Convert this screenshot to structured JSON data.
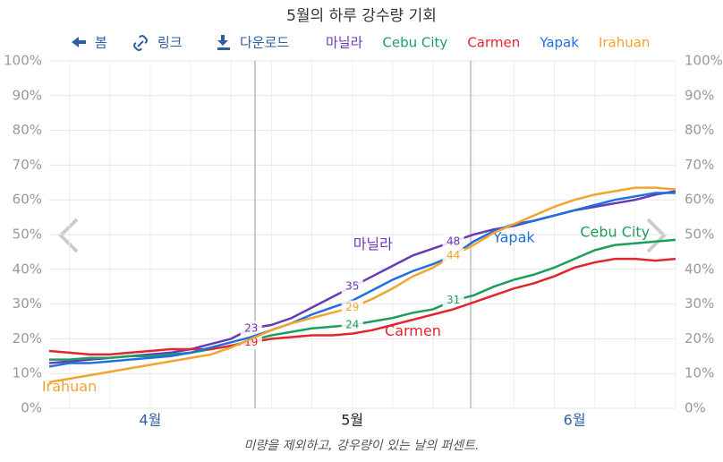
{
  "chart_data": {
    "type": "line",
    "title": "5월의 하루 강수량 기회",
    "toolbar": [
      "봄",
      "링크",
      "다운로드"
    ],
    "note": "미량을 제외하고, 강우량이 있는 날의 퍼센트.",
    "categories": [
      null,
      null,
      null,
      null,
      null,
      "4월",
      null,
      null,
      null,
      null,
      null,
      null,
      null,
      null,
      null,
      "5월",
      null,
      null,
      null,
      null,
      null,
      null,
      null,
      null,
      null,
      null,
      "6월",
      null,
      null,
      null,
      null,
      null
    ],
    "ylim": [
      0,
      100
    ],
    "yticks": [
      {
        "value": 0,
        "label": "0%"
      },
      {
        "value": 10,
        "label": "10%"
      },
      {
        "value": 20,
        "label": "20%"
      },
      {
        "value": 30,
        "label": "30%"
      },
      {
        "value": 40,
        "label": "40%"
      },
      {
        "value": 50,
        "label": "50%"
      },
      {
        "value": 60,
        "label": "60%"
      },
      {
        "value": 70,
        "label": "70%"
      },
      {
        "value": 80,
        "label": "80%"
      },
      {
        "value": 90,
        "label": "90%"
      },
      {
        "value": 100,
        "label": "100%"
      }
    ],
    "grid": true,
    "series": [
      {
        "name": "마닐라",
        "color": "#673ab7",
        "values": [
          13,
          13.5,
          14,
          14.5,
          15,
          15.5,
          16,
          17,
          18.5,
          20,
          23,
          24,
          26,
          29,
          32,
          35,
          38,
          41,
          44,
          46,
          48,
          50,
          51.5,
          52.5,
          54,
          55.5,
          57,
          58,
          59,
          60,
          61.5,
          62.5
        ],
        "value_labels": [
          null,
          null,
          null,
          null,
          null,
          null,
          null,
          null,
          null,
          null,
          "23",
          null,
          null,
          null,
          null,
          "35",
          null,
          null,
          null,
          null,
          "48",
          null,
          null,
          null,
          null,
          null,
          null,
          null,
          null,
          null,
          null,
          null
        ]
      },
      {
        "name": "Cebu City",
        "color": "#1e9e5e",
        "values": [
          14,
          14,
          14.5,
          14.5,
          15,
          15,
          15.5,
          16,
          17,
          18,
          19.5,
          21,
          22,
          23,
          23.5,
          24,
          25,
          26,
          27.5,
          28.5,
          31,
          32.5,
          35,
          37,
          38.5,
          40.5,
          43,
          45.5,
          47,
          47.5,
          48,
          48.5
        ],
        "value_labels": [
          null,
          null,
          null,
          null,
          null,
          null,
          null,
          null,
          null,
          null,
          null,
          null,
          null,
          null,
          null,
          "24",
          null,
          null,
          null,
          null,
          "31",
          null,
          null,
          null,
          null,
          null,
          null,
          null,
          null,
          null,
          null,
          null
        ]
      },
      {
        "name": "Carmen",
        "color": "#e0262f",
        "values": [
          16.5,
          16,
          15.5,
          15.5,
          16,
          16.5,
          17,
          17,
          17,
          18,
          19,
          20,
          20.5,
          21,
          21,
          21.5,
          22.5,
          24,
          25.5,
          27,
          28.5,
          30.5,
          32.5,
          34.5,
          36,
          38,
          40.5,
          42,
          43,
          43,
          42.5,
          43
        ],
        "value_labels": [
          null,
          null,
          null,
          null,
          null,
          null,
          null,
          null,
          null,
          null,
          "19",
          null,
          null,
          null,
          null,
          null,
          null,
          null,
          null,
          null,
          null,
          null,
          null,
          null,
          null,
          null,
          null,
          null,
          null,
          null,
          null,
          null
        ]
      },
      {
        "name": "Yapak",
        "color": "#1f6fe0",
        "values": [
          12,
          13,
          13,
          13.5,
          14,
          14.5,
          15,
          16,
          17.5,
          19,
          20.5,
          22.5,
          24.5,
          27,
          29,
          31,
          34,
          37,
          39.5,
          41.5,
          44,
          48,
          51,
          53,
          54,
          55.5,
          57,
          58.5,
          60,
          61,
          62,
          62
        ]
      },
      {
        "name": "Irahuan",
        "color": "#f2a431",
        "values": [
          7.5,
          8.5,
          9.5,
          10.5,
          11.5,
          12.5,
          13.5,
          14.5,
          15.5,
          17.5,
          20,
          22.5,
          24.5,
          26,
          27.5,
          29,
          31.5,
          34.5,
          38,
          40.5,
          44,
          47,
          50.5,
          53,
          55.5,
          58,
          60,
          61.5,
          62.5,
          63.5,
          63.5,
          63
        ],
        "value_labels": [
          null,
          null,
          null,
          null,
          null,
          null,
          null,
          null,
          null,
          null,
          null,
          null,
          null,
          null,
          null,
          "29",
          null,
          null,
          null,
          null,
          "44",
          null,
          null,
          null,
          null,
          null,
          null,
          null,
          null,
          null,
          null,
          null
        ]
      }
    ]
  }
}
